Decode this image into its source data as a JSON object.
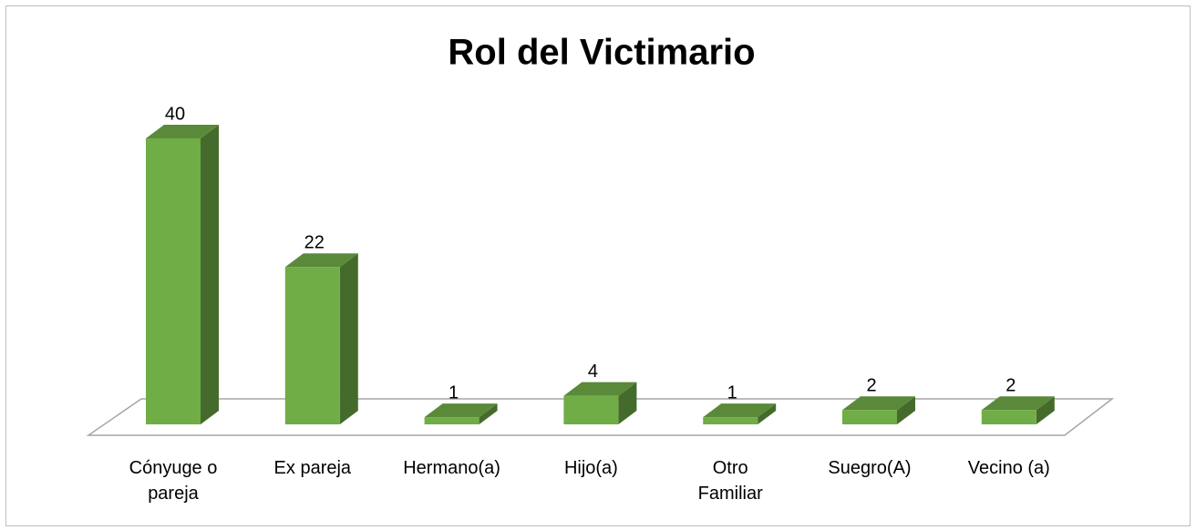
{
  "chart_data": {
    "type": "bar3d",
    "title": "Rol del Victimario",
    "categories": [
      "Cónyuge o pareja",
      "Ex pareja",
      "Hermano(a)",
      "Hijo(a)",
      "Otro Familiar",
      "Suegro(A)",
      "Vecino (a)"
    ],
    "values": [
      40,
      22,
      1,
      4,
      1,
      2,
      2
    ],
    "color": "#70ad47"
  }
}
